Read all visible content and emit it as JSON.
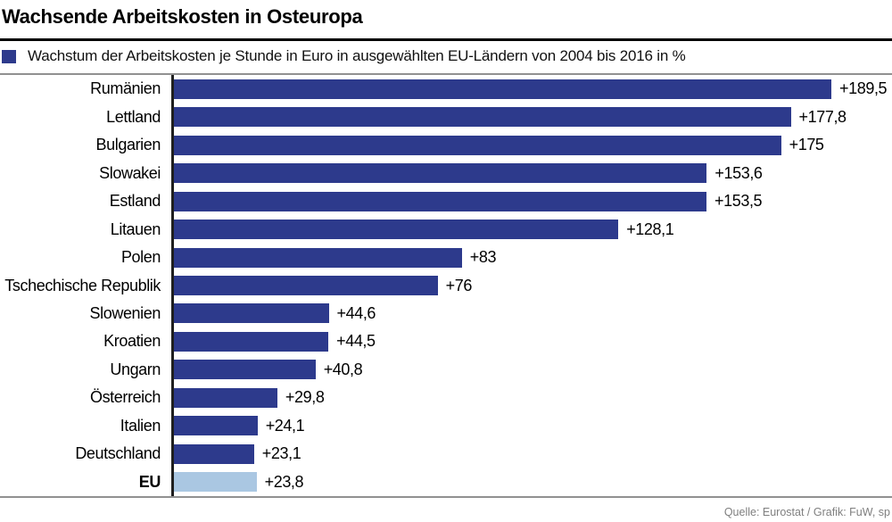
{
  "header": {
    "title": "Wachsende Arbeitskosten in Osteuropa"
  },
  "legend": {
    "label": "Wachstum der Arbeitskosten je Stunde in Euro in ausgewählten EU-Ländern von 2004 bis 2016 in %"
  },
  "footer": {
    "source": "Quelle: Eurostat / Grafik: FuW, sp"
  },
  "colors": {
    "bar": "#2d3a8c",
    "bar_highlight": "#aac7e2",
    "axis": "#1f1f1f",
    "rule_gray": "#919191",
    "footer_text": "#7f7f7f"
  },
  "chart_data": {
    "type": "bar",
    "orientation": "horizontal",
    "title": "Wachsende Arbeitskosten in Osteuropa",
    "legend_label": "Wachstum der Arbeitskosten je Stunde in Euro in ausgewählten EU-Ländern von 2004 bis 2016 in %",
    "unit": "%",
    "xlim": [
      0,
      200
    ],
    "grid": false,
    "legend_position": "top-left",
    "categories": [
      "Rumänien",
      "Lettland",
      "Bulgarien",
      "Slowakei",
      "Estland",
      "Litauen",
      "Polen",
      "Tschechische Republik",
      "Slowenien",
      "Kroatien",
      "Ungarn",
      "Österreich",
      "Italien",
      "Deutschland",
      "EU"
    ],
    "values": [
      189.5,
      177.8,
      175,
      153.6,
      153.5,
      128.1,
      83,
      76,
      44.6,
      44.5,
      40.8,
      29.8,
      24.1,
      23.1,
      23.8
    ],
    "value_labels": [
      "+189,5",
      "+177,8",
      "+175",
      "+153,6",
      "+153,5",
      "+128,1",
      "+83",
      "+76",
      "+44,6",
      "+44,5",
      "+40,8",
      "+29,8",
      "+24,1",
      "+23,1",
      "+23,8"
    ],
    "highlight_category": "EU"
  }
}
